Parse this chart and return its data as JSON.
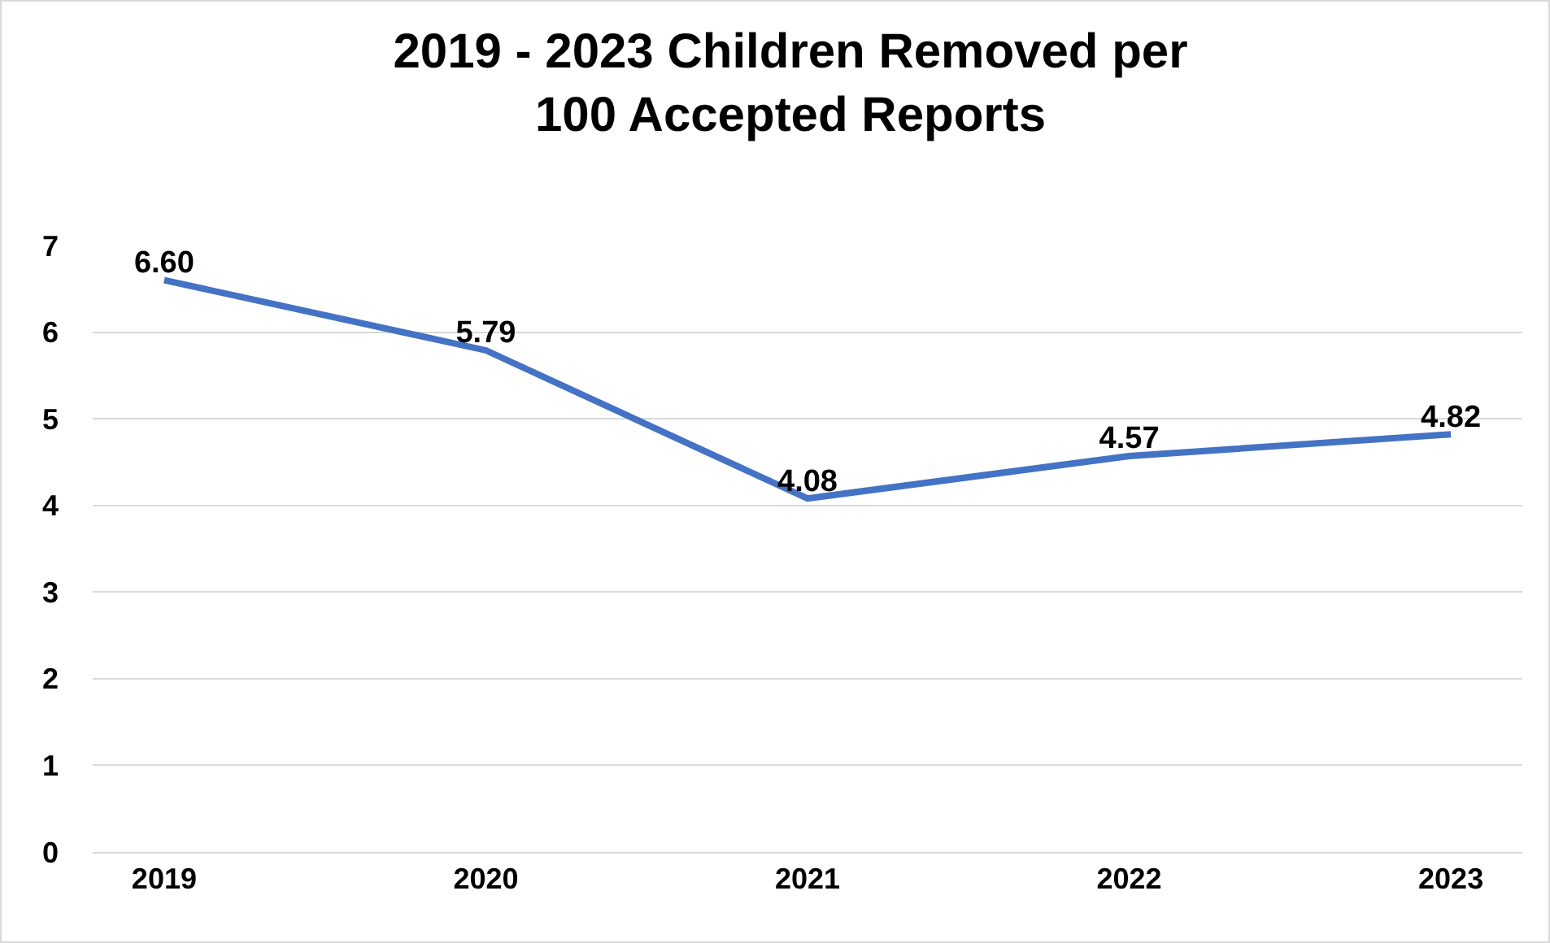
{
  "chart_data": {
    "type": "line",
    "title": "2019 - 2023 Children Removed per 100 Accepted Reports",
    "categories": [
      "2019",
      "2020",
      "2021",
      "2022",
      "2023"
    ],
    "series": [
      {
        "color": "#4472c4",
        "values": [
          6.6,
          5.79,
          4.08,
          4.57,
          4.82
        ],
        "value_labels": [
          "6.60",
          "5.79",
          "4.08",
          "4.57",
          "4.82"
        ]
      }
    ],
    "ylim": [
      0,
      7
    ],
    "yticks": [
      0,
      1,
      2,
      3,
      4,
      5,
      6,
      7
    ],
    "grid": "y",
    "legend": false,
    "marker": "none",
    "line_style": "solid"
  }
}
